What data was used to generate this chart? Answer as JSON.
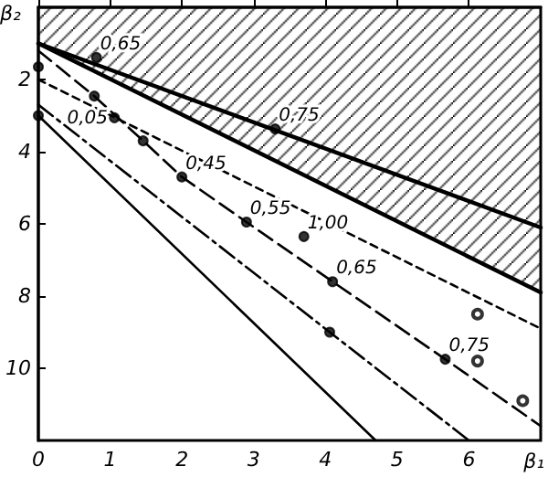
{
  "chart_data": {
    "type": "line",
    "xlabel": "β₁",
    "ylabel": "β₂",
    "xlim": [
      0,
      7
    ],
    "ylim": [
      12,
      0
    ],
    "xticks": [
      0,
      1,
      2,
      3,
      4,
      5,
      6
    ],
    "yticks": [
      2,
      4,
      6,
      8,
      10
    ],
    "grid": false,
    "series": [
      {
        "type": "area",
        "color": "#000000",
        "line_style": "solid",
        "x": [
          0,
          7
        ],
        "values": [
          1,
          7.9
        ]
      },
      {
        "type": "line",
        "color": "#000000",
        "line_style": "solid",
        "x": [
          0,
          7
        ],
        "values": [
          1,
          6.1
        ]
      },
      {
        "color": "#000000",
        "line_style": "dashed",
        "x": [
          0,
          7
        ],
        "values": [
          2,
          8.9
        ]
      },
      {
        "color": "#000000",
        "line_style": "longdash",
        "x": [
          0,
          0.78,
          1.46,
          2,
          2.9,
          4.1,
          5.67,
          7
        ],
        "values": [
          1.2,
          2.46,
          3.7,
          4.7,
          5.95,
          7.6,
          9.75,
          11.6
        ]
      },
      {
        "color": "#000000",
        "line_style": "dashdot",
        "x": [
          0,
          4.06,
          6
        ],
        "values": [
          2.7,
          9,
          12
        ]
      },
      {
        "color": "#000000",
        "line_style": "solid",
        "x": [
          0,
          4.7
        ],
        "values": [
          3,
          12
        ]
      },
      {
        "type": "scatter",
        "color": "#000000",
        "marker": "circle",
        "x": [
          0,
          0,
          0.81,
          3.3,
          0.78,
          1.06,
          1.46,
          2,
          2.9,
          3.7,
          4.1,
          5.67,
          4.06
        ],
        "values": [
          1.65,
          3,
          1.39,
          3.37,
          2.46,
          3.06,
          3.7,
          4.7,
          5.95,
          6.35,
          7.6,
          9.75,
          9
        ]
      },
      {
        "type": "scatter",
        "color": "#000000",
        "marker": "emptyCircle",
        "x": [
          6.12,
          6.12,
          6.75
        ],
        "values": [
          8.5,
          9.8,
          10.9
        ]
      }
    ],
    "annotations": [
      {
        "text": "0,65",
        "x": 0.81,
        "y": 1.39
      },
      {
        "text": "0,75",
        "x": 3.3,
        "y": 3.37
      },
      {
        "text": "0,05",
        "x": 0.35,
        "y": 3.45
      },
      {
        "text": "0,45",
        "x": 2,
        "y": 4.7
      },
      {
        "text": "0,55",
        "x": 2.9,
        "y": 5.95
      },
      {
        "text": "1,00",
        "x": 3.7,
        "y": 6.35
      },
      {
        "text": "0,65",
        "x": 4.1,
        "y": 7.6
      },
      {
        "text": "0,75",
        "x": 5.67,
        "y": 9.75
      }
    ]
  }
}
